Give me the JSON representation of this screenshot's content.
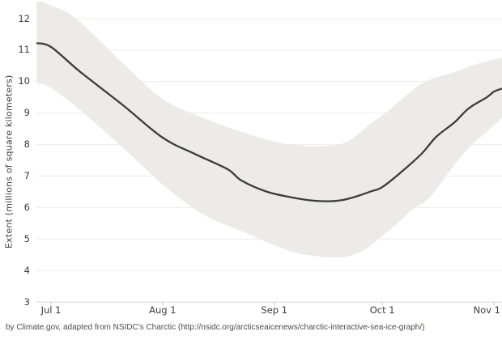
{
  "caption": "by Climate.gov, adapted from NSIDC's Charctic (http://nsidc.org/arcticseaicenews/charctic-interactive-sea-ice-graph/)",
  "chart_data": {
    "type": "line",
    "title": "",
    "xlabel": "",
    "ylabel": "Extent (millions of square kilometers)",
    "legend": "none",
    "grid": true,
    "y_axis": {
      "ticks": [
        3,
        4,
        5,
        6,
        7,
        8,
        9,
        10,
        11,
        12
      ],
      "range": [
        3,
        12.55
      ]
    },
    "x_axis": {
      "ticks": [
        {
          "label": "Jul 1",
          "day": 0
        },
        {
          "label": "Aug 1",
          "day": 31
        },
        {
          "label": "Sep 1",
          "day": 62
        },
        {
          "label": "Oct 1",
          "day": 92
        },
        {
          "label": "Nov 1",
          "day": 123
        }
      ],
      "range_days": [
        -4,
        125.3
      ]
    },
    "series": [
      {
        "name": "sea-ice-extent-line",
        "points_day_value": [
          [
            -4,
            11.22
          ],
          [
            0,
            11.1
          ],
          [
            8,
            10.32
          ],
          [
            20,
            9.25
          ],
          [
            31,
            8.22
          ],
          [
            40,
            7.7
          ],
          [
            49,
            7.22
          ],
          [
            53,
            6.85
          ],
          [
            60,
            6.5
          ],
          [
            67,
            6.32
          ],
          [
            72,
            6.23
          ],
          [
            77,
            6.2
          ],
          [
            81,
            6.24
          ],
          [
            85,
            6.36
          ],
          [
            89,
            6.52
          ],
          [
            92,
            6.65
          ],
          [
            98,
            7.2
          ],
          [
            103,
            7.72
          ],
          [
            107,
            8.25
          ],
          [
            112,
            8.7
          ],
          [
            116,
            9.15
          ],
          [
            121,
            9.5
          ],
          [
            123,
            9.68
          ],
          [
            125.3,
            9.78
          ]
        ]
      }
    ],
    "band": {
      "name": "shaded-range-band",
      "upper_day_value": [
        [
          -4,
          12.6
        ],
        [
          0,
          12.42
        ],
        [
          7,
          12.0
        ],
        [
          20,
          10.58
        ],
        [
          31,
          9.45
        ],
        [
          42,
          8.86
        ],
        [
          53,
          8.4
        ],
        [
          62,
          8.1
        ],
        [
          69,
          7.97
        ],
        [
          76,
          7.95
        ],
        [
          82,
          8.08
        ],
        [
          89,
          8.68
        ],
        [
          94,
          9.1
        ],
        [
          98,
          9.5
        ],
        [
          104,
          10.0
        ],
        [
          112,
          10.3
        ],
        [
          118,
          10.55
        ],
        [
          125.3,
          10.76
        ]
      ],
      "lower_day_value": [
        [
          -4,
          9.95
        ],
        [
          0,
          9.8
        ],
        [
          8,
          9.1
        ],
        [
          20,
          7.9
        ],
        [
          31,
          6.73
        ],
        [
          42,
          5.8
        ],
        [
          53,
          5.25
        ],
        [
          65,
          4.67
        ],
        [
          72,
          4.48
        ],
        [
          81,
          4.42
        ],
        [
          87,
          4.66
        ],
        [
          91.5,
          5.05
        ],
        [
          96,
          5.48
        ],
        [
          100.5,
          5.95
        ],
        [
          105,
          6.3
        ],
        [
          111,
          7.2
        ],
        [
          116,
          7.9
        ],
        [
          121,
          8.4
        ],
        [
          125.3,
          8.85
        ]
      ]
    },
    "colors": {
      "line": "#3c3c3c",
      "band": "#ecebe9",
      "grid": "#f1ebe4",
      "axis_line": "#dbd8d3",
      "tick_mark": "#c8c5c0",
      "tick_text": "#3d3d3d",
      "caption_text": "#4d4c45"
    }
  }
}
